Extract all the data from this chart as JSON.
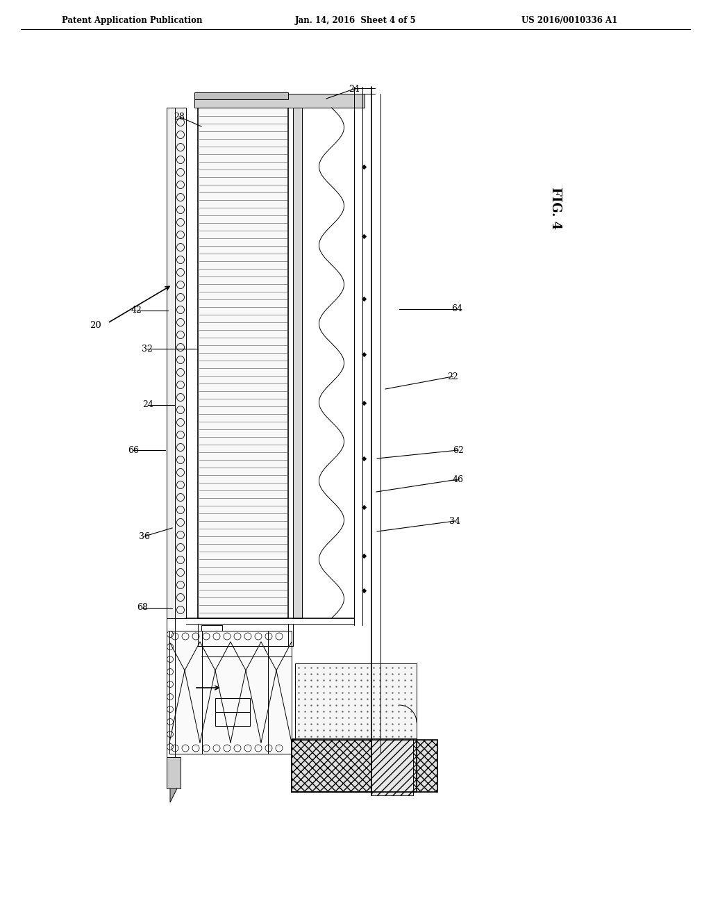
{
  "title_left": "Patent Application Publication",
  "title_center": "Jan. 14, 2016  Sheet 4 of 5",
  "title_right": "US 2016/0010336 A1",
  "fig_label": "FIG. 4",
  "background_color": "#ffffff",
  "line_color": "#000000",
  "hatching_color": "#888888",
  "light_gray": "#cccccc",
  "medium_gray": "#aaaaaa",
  "dark_gray": "#555555"
}
